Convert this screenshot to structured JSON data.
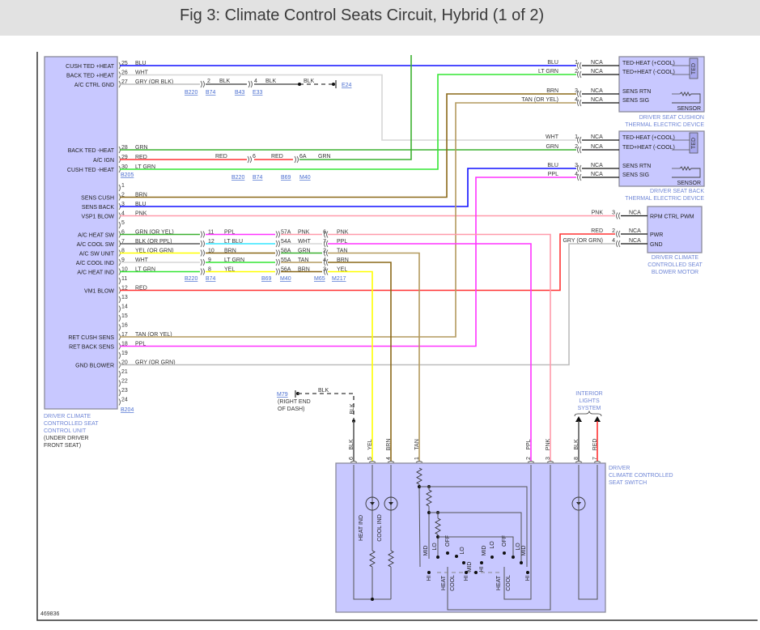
{
  "title": "Fig 3: Climate Control Seats Circuit, Hybrid (1 of 2)",
  "figure_id": "469836",
  "colors": {
    "box_fill": "#c8c8ff",
    "link": "#4a6ed0"
  },
  "control_unit": {
    "label": [
      "DRIVER CLIMATE",
      "CONTROLLED SEAT",
      "CONTROL UNIT"
    ],
    "location": [
      "(UNDER DRIVER",
      "FRONT SEAT)"
    ],
    "connectors": [
      "B205",
      "B204"
    ],
    "pins": [
      {
        "n": "25",
        "func": "CUSH TED +HEAT",
        "wire": "BLU"
      },
      {
        "n": "26",
        "func": "BACK TED +HEAT",
        "wire": "WHT"
      },
      {
        "n": "27",
        "func": "A/C CTRL GND",
        "wire": "GRY  (OR BLK)"
      },
      {
        "n": "28",
        "func": "BACK TED -HEAT",
        "wire": "GRN"
      },
      {
        "n": "29",
        "func": "A/C IGN",
        "wire": "RED"
      },
      {
        "n": "30",
        "func": "CUSH TED -HEAT",
        "wire": "LT GRN"
      },
      {
        "n": "1",
        "func": "",
        "wire": ""
      },
      {
        "n": "2",
        "func": "SENS CUSH",
        "wire": "BRN"
      },
      {
        "n": "3",
        "func": "SENS BACK",
        "wire": "BLU"
      },
      {
        "n": "4",
        "func": "VSP1 BLOW",
        "wire": "PNK"
      },
      {
        "n": "5",
        "func": "",
        "wire": ""
      },
      {
        "n": "6",
        "func": "A/C HEAT SW",
        "wire": "GRN   (OR YEL)"
      },
      {
        "n": "7",
        "func": "A/C COOL SW",
        "wire": "BLK   (OR PPL)"
      },
      {
        "n": "8",
        "func": "A/C SW UNIT",
        "wire": "YEL   (OR GRN)"
      },
      {
        "n": "9",
        "func": "A/C COOL IND",
        "wire": "WHT"
      },
      {
        "n": "10",
        "func": "A/C HEAT IND",
        "wire": "LT GRN"
      },
      {
        "n": "11",
        "func": "",
        "wire": ""
      },
      {
        "n": "12",
        "func": "VM1 BLOW",
        "wire": "RED"
      },
      {
        "n": "13",
        "func": "",
        "wire": ""
      },
      {
        "n": "14",
        "func": "",
        "wire": ""
      },
      {
        "n": "15",
        "func": "",
        "wire": ""
      },
      {
        "n": "16",
        "func": "",
        "wire": ""
      },
      {
        "n": "17",
        "func": "RET CUSH SENS",
        "wire": "TAN  (OR YEL)"
      },
      {
        "n": "18",
        "func": "RET BACK SENS",
        "wire": "PPL"
      },
      {
        "n": "19",
        "func": "",
        "wire": ""
      },
      {
        "n": "20",
        "func": "GND BLOWER",
        "wire": "GRY  (OR GRN)"
      },
      {
        "n": "21",
        "func": "",
        "wire": ""
      },
      {
        "n": "22",
        "func": "",
        "wire": ""
      },
      {
        "n": "23",
        "func": "",
        "wire": ""
      },
      {
        "n": "24",
        "func": "",
        "wire": ""
      }
    ]
  },
  "splices": {
    "ground_path": {
      "labels": [
        "2",
        "BLK",
        "4",
        "BLK",
        "BLK"
      ],
      "refs": [
        "B220",
        "B74",
        "B43",
        "E33"
      ],
      "ground": "E24"
    },
    "ign_path": {
      "labels": [
        "RED",
        "6",
        "RED",
        "6A",
        "GRN"
      ],
      "refs": [
        "B220",
        "B74",
        "B69",
        "M40"
      ]
    },
    "switch_rows": [
      [
        "11",
        "PPL",
        "57A",
        "PNK",
        "6",
        "PNK"
      ],
      [
        "12",
        "LT BLU",
        "54A",
        "WHT",
        "7",
        "PPL"
      ],
      [
        "10",
        "BRN",
        "58A",
        "GRN",
        "2",
        "TAN"
      ],
      [
        "9",
        "LT GRN",
        "55A",
        "TAN",
        "4",
        "BRN"
      ],
      [
        "8",
        "YEL",
        "56A",
        "BRN",
        "3",
        "YEL"
      ]
    ],
    "switch_refs": [
      "B220",
      "B74",
      "B69",
      "M40",
      "M65",
      "M217"
    ]
  },
  "cushion_ted": {
    "label": [
      "DRIVER SEAT CUSHION",
      "THERMAL ELECTRIC DEVICE"
    ],
    "ted": "TED",
    "sensor": "SENSOR",
    "pins": [
      {
        "n": "1",
        "wire": "BLU",
        "term": "NCA",
        "func": "TED-HEAT (+COOL)"
      },
      {
        "n": "2",
        "wire": "LT GRN",
        "term": "NCA",
        "func": "TED+HEAT (-COOL)"
      },
      {
        "n": "3",
        "wire": "BRN",
        "term": "NCA",
        "func": "SENS RTN"
      },
      {
        "n": "4",
        "wire": "TAN      (OR YEL)",
        "term": "NCA",
        "func": "SENS SIG"
      }
    ]
  },
  "back_ted": {
    "label": [
      "DRIVER SEAT BACK",
      "THERMAL ELECTRIC DEVICE"
    ],
    "ted": "TED",
    "sensor": "SENSOR",
    "pins": [
      {
        "n": "1",
        "wire": "WHT",
        "term": "NCA",
        "func": "TED-HEAT (+COOL)"
      },
      {
        "n": "2",
        "wire": "GRN",
        "term": "NCA",
        "func": "TED+HEAT (-COOL)"
      },
      {
        "n": "3",
        "wire": "BLU",
        "term": "NCA",
        "func": "SENS RTN"
      },
      {
        "n": "4",
        "wire": "PPL",
        "term": "NCA",
        "func": "SENS SIG"
      }
    ]
  },
  "blower_motor": {
    "label": [
      "DRIVER CLIMATE",
      "CONTROLLED SEAT",
      "BLOWER MOTOR"
    ],
    "pins": [
      {
        "n": "3",
        "wire": "PNK",
        "term": "NCA",
        "func": "RPM CTRL PWM"
      },
      {
        "n": "2",
        "wire": "RED",
        "term": "NCA",
        "func": "PWR"
      },
      {
        "n": "4",
        "wire": "GRY  (OR GRN)",
        "term": "NCA",
        "func": "GND"
      }
    ]
  },
  "ground_m79": {
    "ref": "M79",
    "location": [
      "(RIGHT END",
      "OF DASH)"
    ],
    "wire": "BLK",
    "drop_wire": "BLK"
  },
  "interior_lights": {
    "label": [
      "INTERIOR",
      "LIGHTS",
      "SYSTEM"
    ]
  },
  "seat_switch": {
    "label": [
      "DRIVER",
      "CLIMATE CONTROLLED",
      "SEAT SWITCH"
    ],
    "pins": [
      {
        "n": "6",
        "wire": "BLK"
      },
      {
        "n": "5",
        "wire": "YEL"
      },
      {
        "n": "4",
        "wire": "BRN"
      },
      {
        "n": "1",
        "wire": "TAN"
      },
      {
        "n": "2",
        "wire": "PPL"
      },
      {
        "n": "3",
        "wire": "PNK"
      },
      {
        "n": "8",
        "wire": "BLK"
      },
      {
        "n": "7",
        "wire": "RED"
      }
    ],
    "indicators": [
      "HEAT IND",
      "COOL IND"
    ],
    "positions": [
      "MID",
      "LO",
      "OFF",
      "LO",
      "MID",
      "HI",
      "MID",
      "LO",
      "OFF",
      "LO",
      "MID",
      "HI",
      "HEAT",
      "COOL",
      "HI",
      "HEAT",
      "COOL",
      "HI"
    ]
  }
}
